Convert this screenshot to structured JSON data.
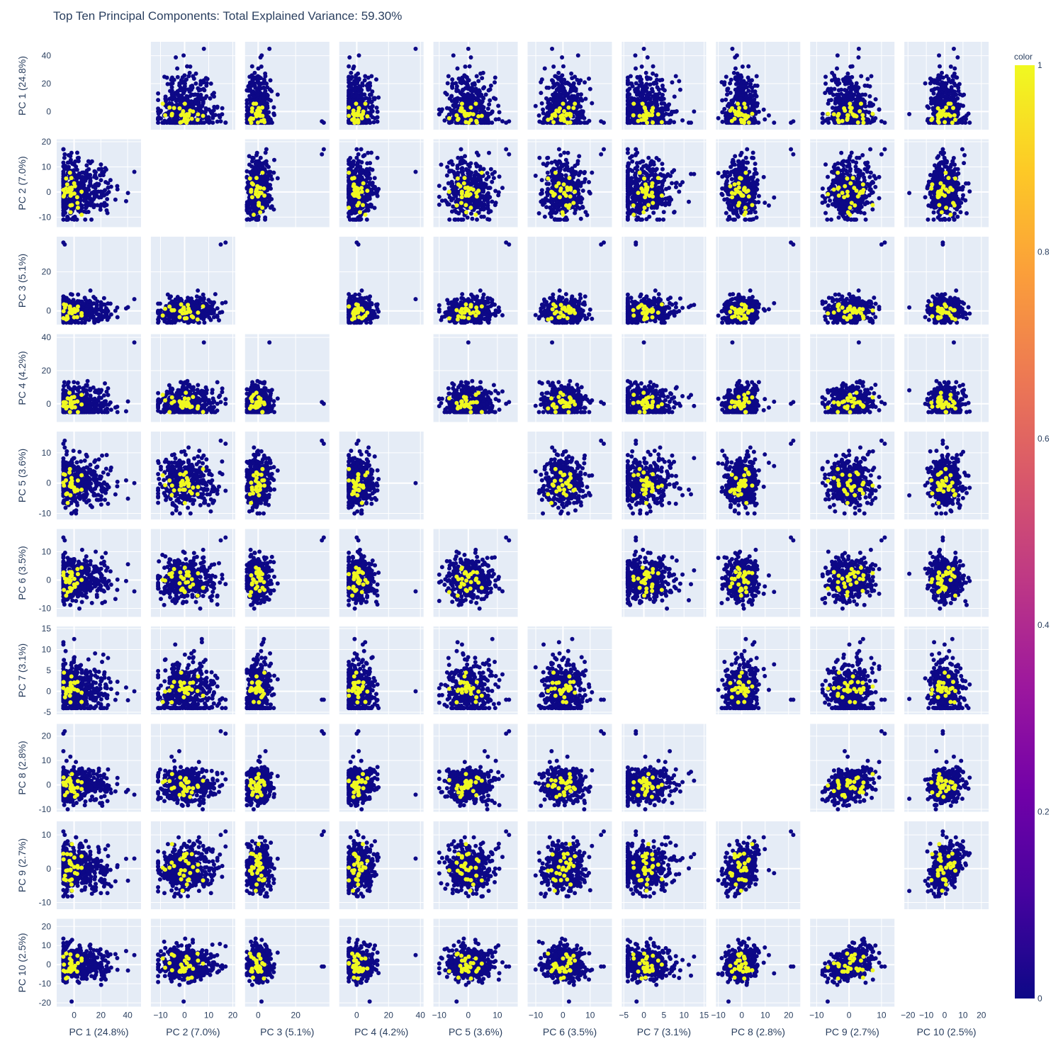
{
  "chart_data": {
    "type": "scatter",
    "subtype": "scatter-matrix",
    "title": "Top Ten Principal Components: Total Explained Variance: 59.30%",
    "dimensions": [
      {
        "label": "PC 1 (24.8%)",
        "range": [
          -13,
          50
        ],
        "ticks": [
          0,
          20,
          40
        ],
        "low": -8,
        "high": 45
      },
      {
        "label": "PC 2 (7.0%)",
        "range": [
          -14,
          21
        ],
        "ticks": [
          -10,
          0,
          10,
          20
        ],
        "low": -11,
        "high": 17
      },
      {
        "label": "PC 3 (5.1%)",
        "range": [
          -7,
          38
        ],
        "ticks": [
          0,
          20
        ],
        "low": -6,
        "high": 36
      },
      {
        "label": "PC 4 (4.2%)",
        "range": [
          -11,
          42
        ],
        "ticks": [
          0,
          20,
          40
        ],
        "low": -5,
        "high": 37
      },
      {
        "label": "PC 5 (3.6%)",
        "range": [
          -12,
          17
        ],
        "ticks": [
          -10,
          0,
          10
        ],
        "low": -10,
        "high": 14
      },
      {
        "label": "PC 6 (3.5%)",
        "range": [
          -13,
          18
        ],
        "ticks": [
          -10,
          0,
          10
        ],
        "low": -11,
        "high": 15
      },
      {
        "label": "PC 7 (3.1%)",
        "range": [
          -5.5,
          15.5
        ],
        "ticks": [
          -5,
          0,
          5,
          10,
          15
        ],
        "low": -4,
        "high": 13.5
      },
      {
        "label": "PC 8 (2.8%)",
        "range": [
          -11,
          25
        ],
        "ticks": [
          -10,
          0,
          10,
          20
        ],
        "low": -10,
        "high": 22
      },
      {
        "label": "PC 9 (2.7%)",
        "range": [
          -12,
          14
        ],
        "ticks": [
          -10,
          0,
          10
        ],
        "low": -10,
        "high": 13
      },
      {
        "label": "PC 10 (2.5%)",
        "range": [
          -22,
          24
        ],
        "ticks": [
          -20,
          -10,
          0,
          10,
          20
        ],
        "low": -20,
        "high": 20
      }
    ],
    "color_axis": {
      "title": "color",
      "range": [
        0,
        1
      ],
      "ticks": [
        0,
        0.2,
        0.4,
        0.6,
        0.8,
        1
      ],
      "colorscale": "plasma",
      "colors": [
        "#0d0887",
        "#46039f",
        "#7201a8",
        "#9c179e",
        "#bd3786",
        "#d8576b",
        "#ed7953",
        "#fb9f3a",
        "#fdca26",
        "#f0f921"
      ]
    },
    "marker_colors": {
      "class_0": "#0d0887",
      "class_1": "#f0f921"
    },
    "diagonal_visible": false,
    "grid": true,
    "legend": "colorbar-right",
    "plot_background": "#e5ecf6"
  }
}
